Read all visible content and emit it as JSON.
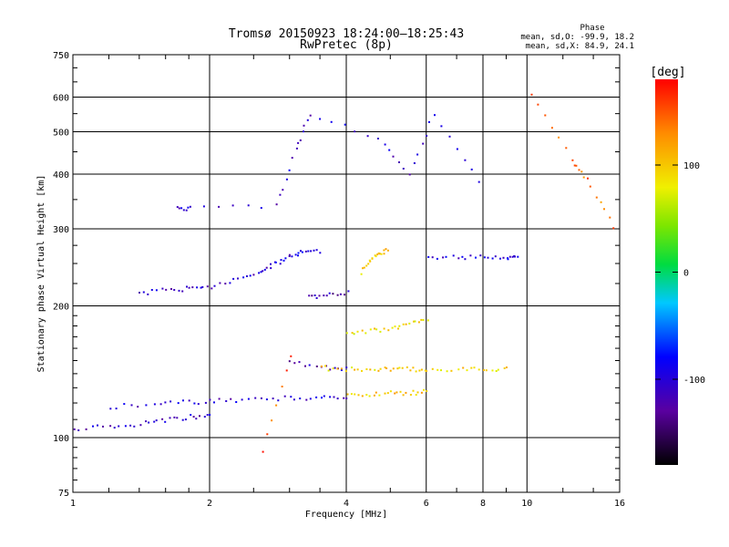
{
  "chart_data": {
    "type": "scatter",
    "title": "Tromsø 20150923 18:24:00–18:25:43",
    "subtitle": "RwPretec (8p)",
    "xlabel": "Frequency [MHz]",
    "ylabel": "Stationary phase Virtual Height [km]",
    "x_scale": "log",
    "y_scale": "log",
    "xlim": [
      1,
      16
    ],
    "ylim": [
      75,
      750
    ],
    "x_ticks": [
      1,
      2,
      4,
      6,
      8,
      10,
      16
    ],
    "x_tick_labels": [
      "1",
      "2",
      "4",
      "6",
      "8",
      "10",
      "16"
    ],
    "y_ticks": [
      75,
      100,
      200,
      300,
      400,
      500,
      600,
      750
    ],
    "y_tick_labels": [
      "75",
      "100",
      "200",
      "300",
      "400",
      "500",
      "600",
      "750"
    ],
    "grid": true,
    "legend": {
      "header": "Phase",
      "line1": "mean, sd,O: -99.9, 18.2",
      "line2": "mean, sd,X:  84.9, 24.1"
    },
    "colorbar": {
      "label": "[deg]",
      "range": [
        -180,
        180
      ],
      "ticks": [
        100,
        0,
        -100
      ],
      "tick_labels": [
        "100",
        "0",
        "-100"
      ],
      "colormap": "rainbow"
    },
    "traces": [
      {
        "x": [
          1.0,
          1.2,
          1.4,
          1.6,
          1.8,
          2.0
        ],
        "y": [
          105,
          107,
          108,
          110,
          112,
          113
        ],
        "phase": -110
      },
      {
        "x": [
          1.2,
          1.5,
          1.8,
          2.1,
          2.5,
          3.0,
          3.5,
          4.0
        ],
        "y": [
          118,
          120,
          121,
          122,
          123,
          124,
          124,
          125
        ],
        "phase": -105
      },
      {
        "x": [
          4.0,
          4.5,
          5.0,
          5.5,
          6.0
        ],
        "y": [
          125,
          126,
          127,
          127,
          128
        ],
        "phase": 100
      },
      {
        "x": [
          1.4,
          1.6,
          1.8,
          2.0,
          2.3,
          2.6
        ],
        "y": [
          215,
          218,
          220,
          222,
          232,
          240
        ],
        "phase": -110
      },
      {
        "x": [
          2.6,
          2.8,
          3.0,
          3.2,
          3.5
        ],
        "y": [
          240,
          252,
          262,
          266,
          268
        ],
        "phase": -100
      },
      {
        "x": [
          3.0,
          3.5,
          4.0
        ],
        "y": [
          150,
          145,
          145
        ],
        "phase": -115
      },
      {
        "x": [
          3.5,
          4.0,
          4.5,
          5.0,
          5.5,
          6.0,
          7.0,
          8.0,
          9.0
        ],
        "y": [
          145,
          144,
          144,
          144,
          144,
          144,
          144,
          144,
          144
        ],
        "phase": 95
      },
      {
        "x": [
          6.0,
          7.0,
          8.0,
          9.0,
          9.5
        ],
        "y": [
          259,
          260,
          260,
          260,
          260
        ],
        "phase": -100
      },
      {
        "x": [
          4.0,
          4.5,
          5.0,
          5.5,
          6.0
        ],
        "y": [
          175,
          176,
          178,
          182,
          188
        ],
        "phase": 90
      },
      {
        "x": [
          4.3,
          4.5,
          4.7,
          4.9
        ],
        "y": [
          240,
          255,
          265,
          270
        ],
        "phase": 100
      },
      {
        "x": [
          3.3,
          3.6,
          4.0
        ],
        "y": [
          210,
          212,
          215
        ],
        "phase": -120
      },
      {
        "x": [
          1.7,
          1.8,
          2.8,
          3.1,
          3.3,
          4.7,
          5.5,
          6.2,
          7.8
        ],
        "y": [
          335,
          335,
          340,
          455,
          550,
          485,
          405,
          550,
          385
        ],
        "phase": -105
      },
      {
        "x": [
          2.6,
          3.0
        ],
        "y": [
          93,
          155
        ],
        "phase": 150
      },
      {
        "x": [
          10.2,
          12.5,
          13.5,
          15.5
        ],
        "y": [
          615,
          430,
          390,
          305
        ],
        "phase": 140
      }
    ]
  }
}
